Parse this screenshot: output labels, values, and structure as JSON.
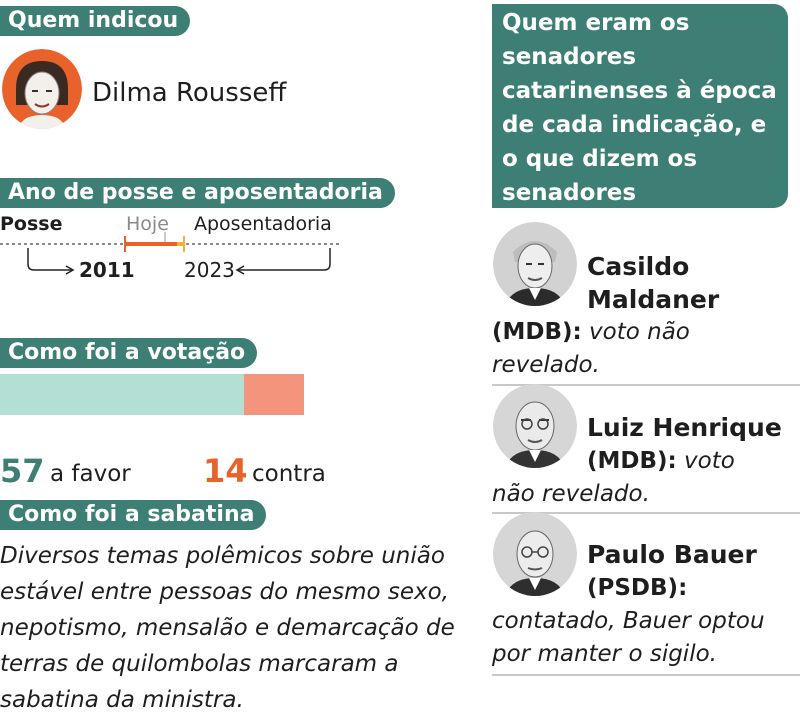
{
  "indicou": {
    "header": "Quem indicou",
    "name": "Dilma Rousseff",
    "photo_icon": "portrait-dilma"
  },
  "posse": {
    "header": "Ano de posse e aposentadoria",
    "posse_label": "Posse",
    "hoje_label": "Hoje",
    "aposentadoria_label": "Aposentadoria",
    "posse_year": "2011",
    "aposentadoria_year": "2023"
  },
  "votacao": {
    "header": "Como foi a votação",
    "favor_count": "57",
    "favor_label": "a favor",
    "contra_count": "14",
    "contra_label": "contra",
    "favor_color": "#b3dfd5",
    "contra_color": "#f2957c"
  },
  "sabatina": {
    "header": "Como foi a sabatina",
    "text": "Diversos temas polêmicos sobre união estável entre pessoas do mesmo sexo, nepotismo, mensalão e demarcação de terras de quilombolas marcaram a sabatina da ministra."
  },
  "senadores": {
    "header": "Quem eram os senadores catarinenses à época de cada indicação, e o que dizem os senadores",
    "items": [
      {
        "name": "Casildo Maldaner",
        "party": "(MDB):",
        "statement": "voto não revelado.",
        "photo_icon": "portrait-casildo"
      },
      {
        "name": "Luiz Henrique",
        "party": "(MDB):",
        "statement": "voto não revelado.",
        "photo_icon": "portrait-luiz-henrique"
      },
      {
        "name": "Paulo Bauer",
        "party": "(PSDB):",
        "statement": "contatado, Bauer optou por manter o sigilo.",
        "photo_icon": "portrait-paulo-bauer"
      }
    ]
  },
  "colors": {
    "accent": "#3d7f74",
    "orange": "#e8622a",
    "yellow": "#f2b233"
  }
}
